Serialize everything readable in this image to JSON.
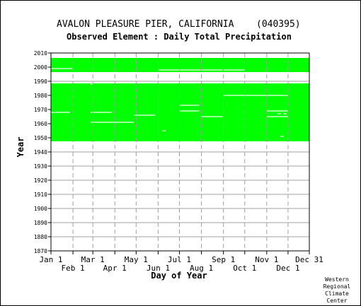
{
  "chart_data": {
    "type": "heatmap",
    "title": "AVALON PLEASURE PIER, CALIFORNIA",
    "station_id": "(040395)",
    "subtitle": "Observed Element : Daily Total Precipitation",
    "xlabel": "Day of Year",
    "ylabel": "Year",
    "credit": [
      "Western",
      "Regional",
      "Climate",
      "Center"
    ],
    "ylim": [
      1870,
      2010
    ],
    "yticks": [
      1870,
      1880,
      1890,
      1900,
      1910,
      1920,
      1930,
      1940,
      1950,
      1960,
      1970,
      1980,
      1990,
      2000,
      2010
    ],
    "xlim": [
      1,
      365
    ],
    "xticks_upper": [
      {
        "label": "Jan 1",
        "day": 1
      },
      {
        "label": "Mar 1",
        "day": 60
      },
      {
        "label": "May 1",
        "day": 121
      },
      {
        "label": "Jul 1",
        "day": 182
      },
      {
        "label": "Sep 1",
        "day": 244
      },
      {
        "label": "Nov 1",
        "day": 305
      },
      {
        "label": "Dec 31",
        "day": 365
      }
    ],
    "xticks_lower": [
      {
        "label": "Feb 1",
        "day": 32
      },
      {
        "label": "Apr 1",
        "day": 91
      },
      {
        "label": "Jun 1",
        "day": 152
      },
      {
        "label": "Aug 1",
        "day": 213
      },
      {
        "label": "Oct 1",
        "day": 274
      },
      {
        "label": "Dec 1",
        "day": 335
      }
    ],
    "grid": true,
    "colors": {
      "data_present": "#00ff00",
      "background": "#ffffff",
      "grid": "#a0a0a0"
    },
    "coverage_blocks": [
      {
        "year_start": 1948,
        "year_end": 1988,
        "day_start": 1,
        "day_end": 365
      },
      {
        "year_start": 1997,
        "year_end": 2006,
        "day_start": 1,
        "day_end": 365
      }
    ],
    "missing_segments": [
      {
        "year": 1968,
        "day_start": 1,
        "day_end": 28
      },
      {
        "year": 1968,
        "day_start": 57,
        "day_end": 87
      },
      {
        "year": 1961,
        "day_start": 57,
        "day_end": 118
      },
      {
        "year": 1966,
        "day_start": 118,
        "day_end": 148
      },
      {
        "year": 1955,
        "day_start": 158,
        "day_end": 163
      },
      {
        "year": 1973,
        "day_start": 182,
        "day_end": 210
      },
      {
        "year": 1969,
        "day_start": 182,
        "day_end": 210
      },
      {
        "year": 1965,
        "day_start": 213,
        "day_end": 243
      },
      {
        "year": 1980,
        "day_start": 244,
        "day_end": 335
      },
      {
        "year": 1969,
        "day_start": 305,
        "day_end": 335
      },
      {
        "year": 1965,
        "day_start": 305,
        "day_end": 335
      },
      {
        "year": 1967,
        "day_start": 320,
        "day_end": 325
      },
      {
        "year": 1967,
        "day_start": 328,
        "day_end": 333
      },
      {
        "year": 1951,
        "day_start": 324,
        "day_end": 329
      },
      {
        "year": 1988,
        "day_start": 56,
        "day_end": 60
      },
      {
        "year": 1999,
        "day_start": 1,
        "day_end": 31
      },
      {
        "year": 1998,
        "day_start": 152,
        "day_end": 243
      },
      {
        "year": 1998,
        "day_start": 244,
        "day_end": 274
      }
    ]
  }
}
